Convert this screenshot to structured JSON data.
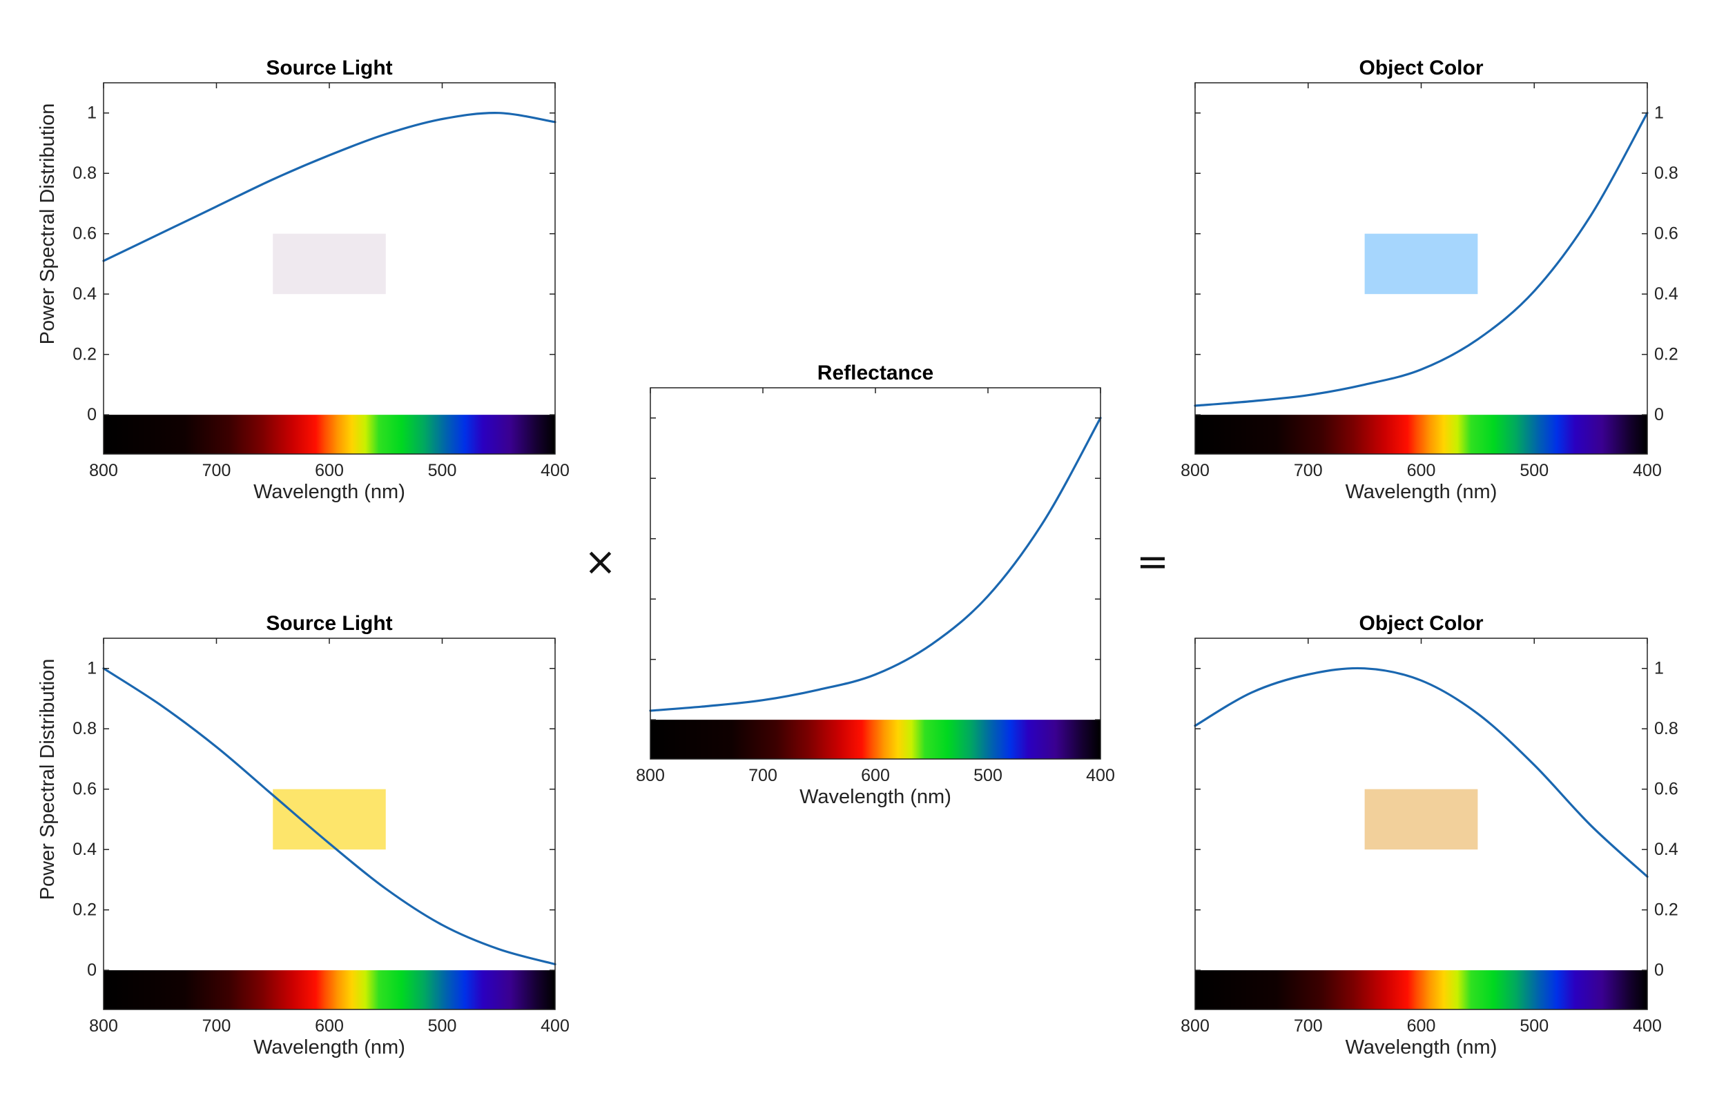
{
  "colors": {
    "curve": "#1a67b0",
    "axis": "#222222",
    "text": "#222222"
  },
  "operators": {
    "times": "×",
    "equals": "="
  },
  "chart_data": [
    {
      "id": "source_top",
      "type": "line",
      "title": "Source Light",
      "xlabel": "Wavelength (nm)",
      "ylabel": "Power Spectral Distribution",
      "xlim": [
        800,
        400
      ],
      "ylim": [
        -0.13,
        1.1
      ],
      "xticks": [
        "800",
        "700",
        "600",
        "500",
        "400"
      ],
      "yticks": [
        "0",
        "0.2",
        "0.4",
        "0.6",
        "0.8",
        "1"
      ],
      "y_axis_side": "left",
      "y_tick_labels": true,
      "swatch": {
        "color": "#efe9ef",
        "x_range": [
          650,
          550
        ],
        "y_range": [
          0.4,
          0.6
        ]
      },
      "x": [
        800,
        750,
        700,
        650,
        600,
        550,
        500,
        450,
        400
      ],
      "y": [
        0.51,
        0.6,
        0.69,
        0.78,
        0.86,
        0.93,
        0.98,
        1.0,
        0.97
      ]
    },
    {
      "id": "source_bottom",
      "type": "line",
      "title": "Source Light",
      "xlabel": "Wavelength (nm)",
      "ylabel": "Power Spectral Distribution",
      "xlim": [
        800,
        400
      ],
      "ylim": [
        -0.13,
        1.1
      ],
      "xticks": [
        "800",
        "700",
        "600",
        "500",
        "400"
      ],
      "yticks": [
        "0",
        "0.2",
        "0.4",
        "0.6",
        "0.8",
        "1"
      ],
      "y_axis_side": "left",
      "y_tick_labels": true,
      "swatch": {
        "color": "#fde56b",
        "x_range": [
          650,
          550
        ],
        "y_range": [
          0.4,
          0.6
        ]
      },
      "x": [
        800,
        750,
        700,
        650,
        600,
        550,
        500,
        450,
        400
      ],
      "y": [
        1.0,
        0.88,
        0.74,
        0.58,
        0.42,
        0.27,
        0.15,
        0.07,
        0.02
      ]
    },
    {
      "id": "reflectance",
      "type": "line",
      "title": "Reflectance",
      "xlabel": "Wavelength (nm)",
      "ylabel": "",
      "xlim": [
        800,
        400
      ],
      "ylim": [
        -0.13,
        1.1
      ],
      "xticks": [
        "800",
        "700",
        "600",
        "500",
        "400"
      ],
      "yticks": [
        "",
        "",
        "",
        "",
        "",
        ""
      ],
      "y_axis_side": "left",
      "y_tick_labels": false,
      "x": [
        800,
        750,
        700,
        650,
        600,
        550,
        500,
        450,
        400
      ],
      "y": [
        0.03,
        0.045,
        0.065,
        0.1,
        0.15,
        0.25,
        0.41,
        0.66,
        1.0
      ]
    },
    {
      "id": "object_top",
      "type": "line",
      "title": "Object Color",
      "xlabel": "Wavelength (nm)",
      "ylabel": "",
      "xlim": [
        800,
        400
      ],
      "ylim": [
        -0.13,
        1.1
      ],
      "xticks": [
        "800",
        "700",
        "600",
        "500",
        "400"
      ],
      "yticks": [
        "0",
        "0.2",
        "0.4",
        "0.6",
        "0.8",
        "1"
      ],
      "y_axis_side": "right",
      "y_tick_labels": true,
      "swatch": {
        "color": "#a6d6fd",
        "x_range": [
          650,
          550
        ],
        "y_range": [
          0.4,
          0.6
        ]
      },
      "x": [
        800,
        750,
        700,
        650,
        600,
        550,
        500,
        450,
        400
      ],
      "y": [
        0.03,
        0.045,
        0.065,
        0.1,
        0.15,
        0.25,
        0.41,
        0.66,
        1.0
      ]
    },
    {
      "id": "object_bottom",
      "type": "line",
      "title": "Object Color",
      "xlabel": "Wavelength (nm)",
      "ylabel": "",
      "xlim": [
        800,
        400
      ],
      "ylim": [
        -0.13,
        1.1
      ],
      "xticks": [
        "800",
        "700",
        "600",
        "500",
        "400"
      ],
      "yticks": [
        "0",
        "0.2",
        "0.4",
        "0.6",
        "0.8",
        "1"
      ],
      "y_axis_side": "right",
      "y_tick_labels": true,
      "swatch": {
        "color": "#f2d09b",
        "x_range": [
          650,
          550
        ],
        "y_range": [
          0.4,
          0.6
        ]
      },
      "x": [
        800,
        750,
        700,
        650,
        600,
        550,
        500,
        450,
        400
      ],
      "y": [
        0.81,
        0.92,
        0.98,
        1.0,
        0.96,
        0.85,
        0.68,
        0.48,
        0.31
      ]
    }
  ]
}
